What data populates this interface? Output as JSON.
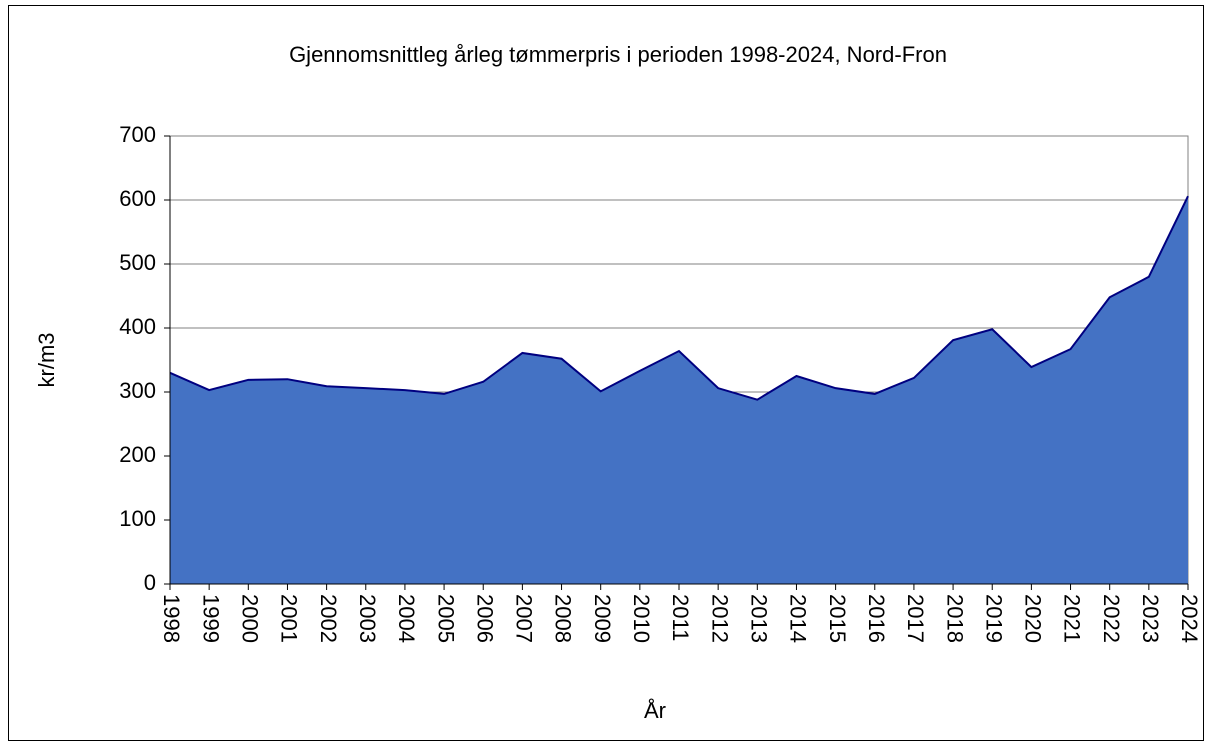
{
  "chart_data": {
    "type": "area",
    "title": "Gjennomsnittleg årleg tømmerpris i perioden 1998-2024, Nord-Fron",
    "x_label": "År",
    "y_label": "kr/m3",
    "categories": [
      "1998",
      "1999",
      "2000",
      "2001",
      "2002",
      "2003",
      "2004",
      "2005",
      "2006",
      "2007",
      "2008",
      "2009",
      "2010",
      "2011",
      "2012",
      "2013",
      "2014",
      "2015",
      "2016",
      "2017",
      "2018",
      "2019",
      "2020",
      "2021",
      "2022",
      "2023",
      "2024"
    ],
    "values": [
      330,
      303,
      319,
      320,
      309,
      306,
      303,
      297,
      316,
      361,
      352,
      301,
      333,
      364,
      306,
      288,
      325,
      306,
      297,
      322,
      381,
      398,
      339,
      367,
      448,
      480,
      606
    ],
    "color": "#4472c4",
    "line_color": "#000080",
    "ylim": [
      0,
      700
    ],
    "yticks": [
      0,
      100,
      200,
      300,
      400,
      500,
      600,
      700
    ],
    "grid": true
  }
}
